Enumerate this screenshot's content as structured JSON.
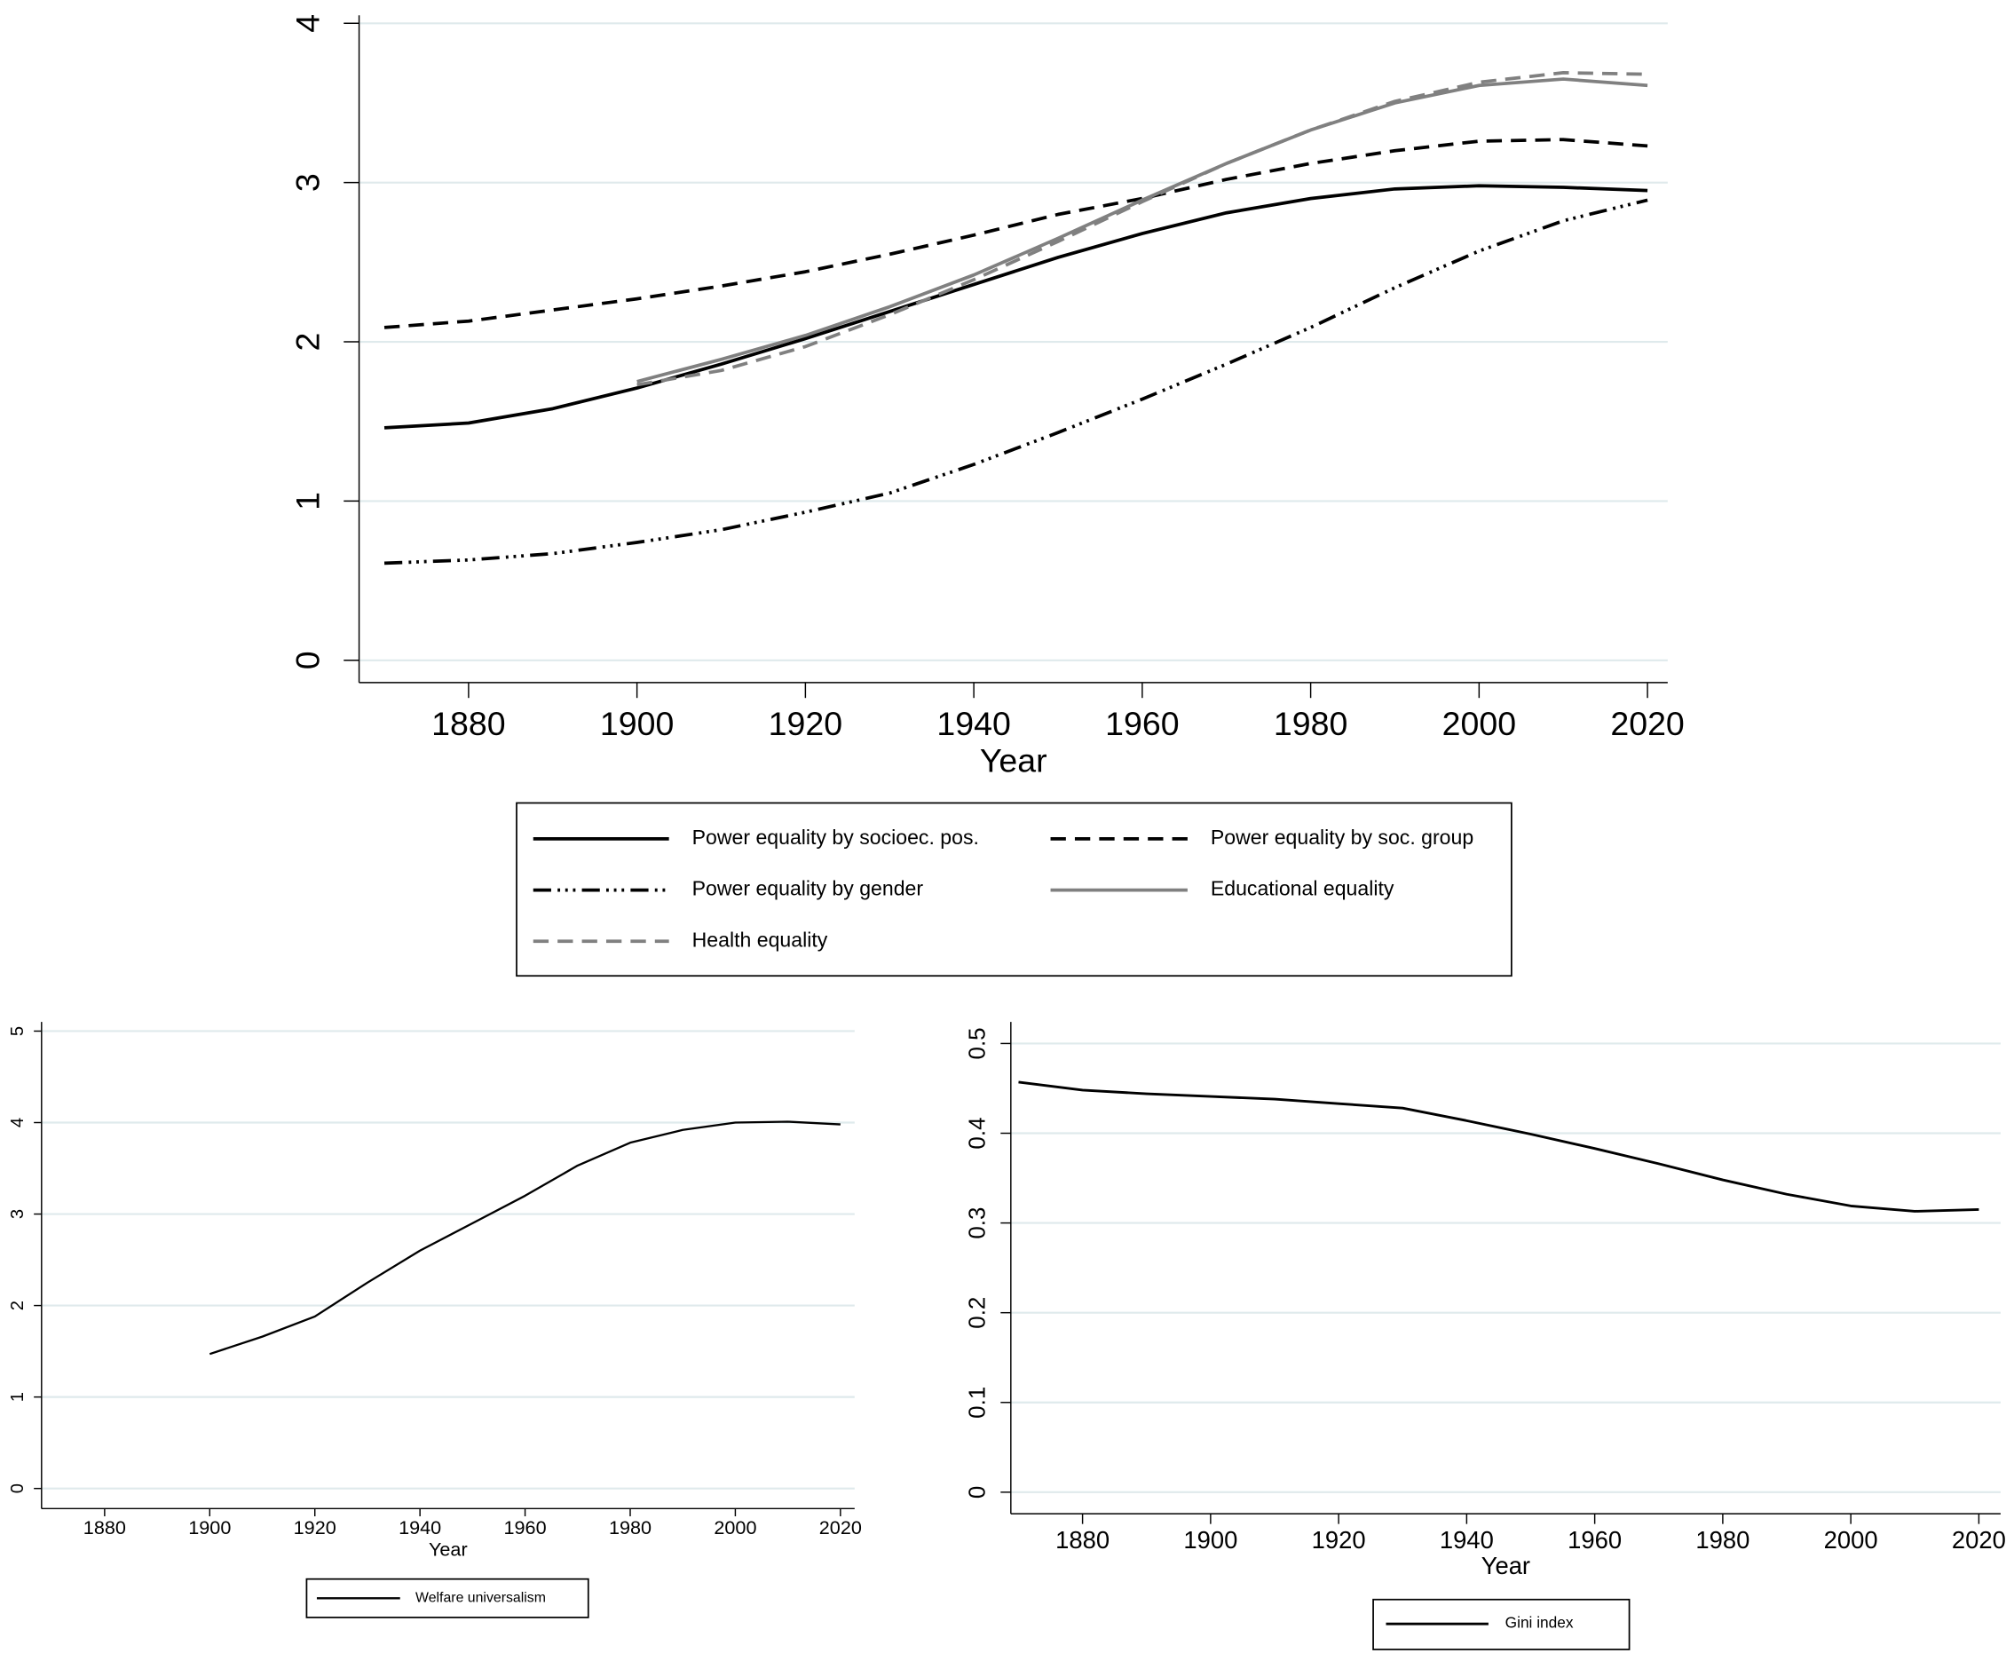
{
  "chart_data": [
    {
      "type": "line",
      "x_label": "Year",
      "x": [
        1870,
        1880,
        1890,
        1900,
        1910,
        1920,
        1930,
        1940,
        1950,
        1960,
        1970,
        1980,
        1990,
        2000,
        2010,
        2020
      ],
      "xlim": [
        1867,
        2022.4
      ],
      "xticks": [
        1880,
        1900,
        1920,
        1940,
        1960,
        1980,
        2000,
        2020
      ],
      "ylim": [
        -0.14,
        4.05
      ],
      "yticks": [
        0,
        1,
        2,
        3,
        4
      ],
      "grid": true,
      "series": [
        {
          "name": "Power equality by socioec. pos.",
          "color": "#000000",
          "style": "solid",
          "values": [
            1.46,
            1.49,
            1.58,
            1.71,
            1.86,
            2.02,
            2.19,
            2.36,
            2.53,
            2.68,
            2.81,
            2.9,
            2.96,
            2.98,
            2.97,
            2.95
          ]
        },
        {
          "name": "Power equality by soc. group",
          "color": "#000000",
          "style": "dash",
          "values": [
            2.09,
            2.13,
            2.2,
            2.27,
            2.35,
            2.44,
            2.55,
            2.67,
            2.8,
            2.9,
            3.02,
            3.12,
            3.2,
            3.26,
            3.27,
            3.23
          ]
        },
        {
          "name": "Power equality by gender",
          "color": "#000000",
          "style": "dashdot",
          "values": [
            0.61,
            0.63,
            0.67,
            0.74,
            0.82,
            0.93,
            1.05,
            1.23,
            1.43,
            1.64,
            1.86,
            2.09,
            2.34,
            2.57,
            2.76,
            2.89
          ]
        },
        {
          "name": "Educational equality",
          "color": "#808080",
          "style": "solid",
          "values": [
            null,
            null,
            null,
            1.75,
            1.89,
            2.04,
            2.22,
            2.42,
            2.65,
            2.89,
            3.12,
            3.33,
            3.5,
            3.61,
            3.65,
            3.61
          ]
        },
        {
          "name": "Health equality",
          "color": "#808080",
          "style": "dash",
          "values": [
            null,
            null,
            null,
            1.73,
            1.82,
            1.97,
            2.17,
            2.39,
            2.63,
            2.88,
            3.12,
            3.33,
            3.51,
            3.63,
            3.69,
            3.68
          ]
        }
      ]
    },
    {
      "type": "line",
      "x_label": "Year",
      "x": [
        1900,
        1910,
        1920,
        1930,
        1940,
        1950,
        1960,
        1970,
        1980,
        1990,
        2000,
        2010,
        2020
      ],
      "xlim": [
        1868,
        2022.7
      ],
      "xticks": [
        1880,
        1900,
        1920,
        1940,
        1960,
        1980,
        2000,
        2020
      ],
      "ylim": [
        -0.22,
        5.1
      ],
      "yticks": [
        0,
        1,
        2,
        3,
        4,
        5
      ],
      "grid": true,
      "series": [
        {
          "name": "Welfare universalism",
          "color": "#000000",
          "style": "solid",
          "values": [
            1.47,
            1.66,
            1.88,
            2.25,
            2.6,
            2.9,
            3.2,
            3.53,
            3.78,
            3.92,
            4.0,
            4.01,
            3.98
          ]
        }
      ]
    },
    {
      "type": "line",
      "x_label": "Year",
      "x": [
        1870,
        1880,
        1890,
        1900,
        1910,
        1920,
        1930,
        1940,
        1950,
        1960,
        1970,
        1980,
        1990,
        2000,
        2010,
        2020
      ],
      "xlim": [
        1868.8,
        2023.4
      ],
      "xticks": [
        1880,
        1900,
        1920,
        1940,
        1960,
        1980,
        2000,
        2020
      ],
      "ylim": [
        -0.024,
        0.524
      ],
      "yticks": [
        0,
        0.1,
        0.2,
        0.3,
        0.4,
        0.5
      ],
      "grid": true,
      "series": [
        {
          "name": "Gini index",
          "color": "#000000",
          "style": "solid",
          "values": [
            0.457,
            0.448,
            0.444,
            0.441,
            0.438,
            0.433,
            0.428,
            0.414,
            0.399,
            0.383,
            0.366,
            0.348,
            0.332,
            0.319,
            0.313,
            0.315
          ]
        }
      ]
    }
  ]
}
